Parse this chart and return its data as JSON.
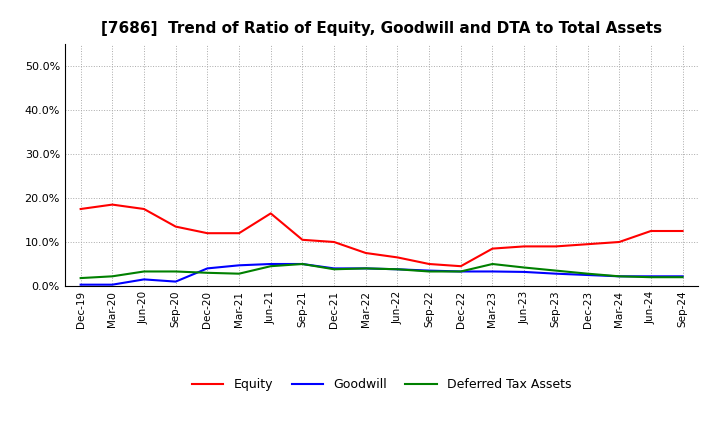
{
  "title": "[7686]  Trend of Ratio of Equity, Goodwill and DTA to Total Assets",
  "x_labels": [
    "Dec-19",
    "Mar-20",
    "Jun-20",
    "Sep-20",
    "Dec-20",
    "Mar-21",
    "Jun-21",
    "Sep-21",
    "Dec-21",
    "Mar-22",
    "Jun-22",
    "Sep-22",
    "Dec-22",
    "Mar-23",
    "Jun-23",
    "Sep-23",
    "Dec-23",
    "Mar-24",
    "Jun-24",
    "Sep-24"
  ],
  "equity": [
    0.175,
    0.185,
    0.175,
    0.135,
    0.12,
    0.12,
    0.165,
    0.105,
    0.1,
    0.075,
    0.065,
    0.05,
    0.045,
    0.085,
    0.09,
    0.09,
    0.095,
    0.1,
    0.125,
    0.125
  ],
  "goodwill": [
    0.003,
    0.003,
    0.015,
    0.01,
    0.04,
    0.047,
    0.05,
    0.05,
    0.04,
    0.04,
    0.038,
    0.035,
    0.033,
    0.033,
    0.032,
    0.028,
    0.025,
    0.022,
    0.022,
    0.022
  ],
  "dta": [
    0.018,
    0.022,
    0.033,
    0.033,
    0.03,
    0.028,
    0.045,
    0.05,
    0.038,
    0.04,
    0.038,
    0.033,
    0.033,
    0.05,
    0.042,
    0.035,
    0.028,
    0.022,
    0.02,
    0.02
  ],
  "equity_color": "#ff0000",
  "goodwill_color": "#0000ff",
  "dta_color": "#008000",
  "ylim": [
    0.0,
    0.55
  ],
  "yticks": [
    0.0,
    0.1,
    0.2,
    0.3,
    0.4,
    0.5
  ],
  "background_color": "#ffffff",
  "grid_color": "#aaaaaa",
  "title_fontsize": 11,
  "legend_labels": [
    "Equity",
    "Goodwill",
    "Deferred Tax Assets"
  ]
}
